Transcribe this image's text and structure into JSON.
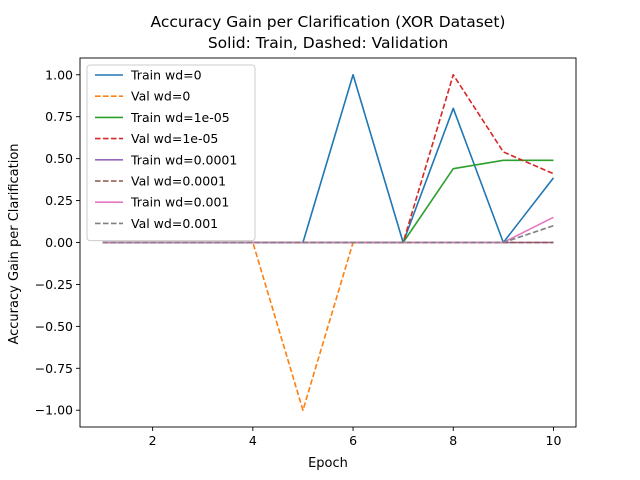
{
  "chart_data": {
    "type": "line",
    "title": "Accuracy Gain per Clarification (XOR Dataset)",
    "subtitle": "Solid: Train, Dashed: Validation",
    "xlabel": "Epoch",
    "ylabel": "Accuracy Gain per Clarification",
    "xlim": [
      0.55,
      10.45
    ],
    "ylim": [
      -1.1,
      1.1
    ],
    "xticks": [
      2,
      4,
      6,
      8,
      10
    ],
    "yticks": [
      -1.0,
      -0.75,
      -0.5,
      -0.25,
      0.0,
      0.25,
      0.5,
      0.75,
      1.0
    ],
    "xtick_labels": [
      "2",
      "4",
      "6",
      "8",
      "10"
    ],
    "ytick_labels": [
      "−1.00",
      "−0.75",
      "−0.50",
      "−0.25",
      "0.00",
      "0.25",
      "0.50",
      "0.75",
      "1.00"
    ],
    "grid": false,
    "legend_position": "top-left",
    "x": [
      1,
      2,
      3,
      4,
      5,
      6,
      7,
      8,
      9,
      10
    ],
    "series": [
      {
        "name": "Train wd=0",
        "color": "#1f77b4",
        "dash": false,
        "values": [
          0,
          0,
          0,
          0,
          0,
          1.0,
          0,
          0.8,
          0,
          0.385
        ]
      },
      {
        "name": "Val wd=0",
        "color": "#ff7f0e",
        "dash": true,
        "values": [
          0,
          0,
          0,
          0,
          -1.0,
          0,
          0,
          0,
          0,
          0
        ]
      },
      {
        "name": "Train wd=1e-05",
        "color": "#2ca02c",
        "dash": false,
        "values": [
          0,
          0,
          0,
          0,
          0,
          0,
          0,
          0.44,
          0.49,
          0.49
        ]
      },
      {
        "name": "Val wd=1e-05",
        "color": "#d62728",
        "dash": true,
        "values": [
          0,
          0,
          0,
          0,
          0,
          0,
          0,
          1.0,
          0.54,
          0.41
        ]
      },
      {
        "name": "Train wd=0.0001",
        "color": "#9467bd",
        "dash": false,
        "values": [
          0,
          0,
          0,
          0,
          0,
          0,
          0,
          0,
          0,
          0
        ]
      },
      {
        "name": "Val wd=0.0001",
        "color": "#8c564b",
        "dash": true,
        "values": [
          0,
          0,
          0,
          0,
          0,
          0,
          0,
          0,
          0,
          0
        ]
      },
      {
        "name": "Train wd=0.001",
        "color": "#e377c2",
        "dash": false,
        "values": [
          0,
          0,
          0,
          0,
          0,
          0,
          0,
          0,
          0,
          0.15
        ]
      },
      {
        "name": "Val wd=0.001",
        "color": "#7f7f7f",
        "dash": true,
        "values": [
          0,
          0,
          0,
          0,
          0,
          0,
          0,
          0,
          0,
          0.1
        ]
      }
    ]
  }
}
